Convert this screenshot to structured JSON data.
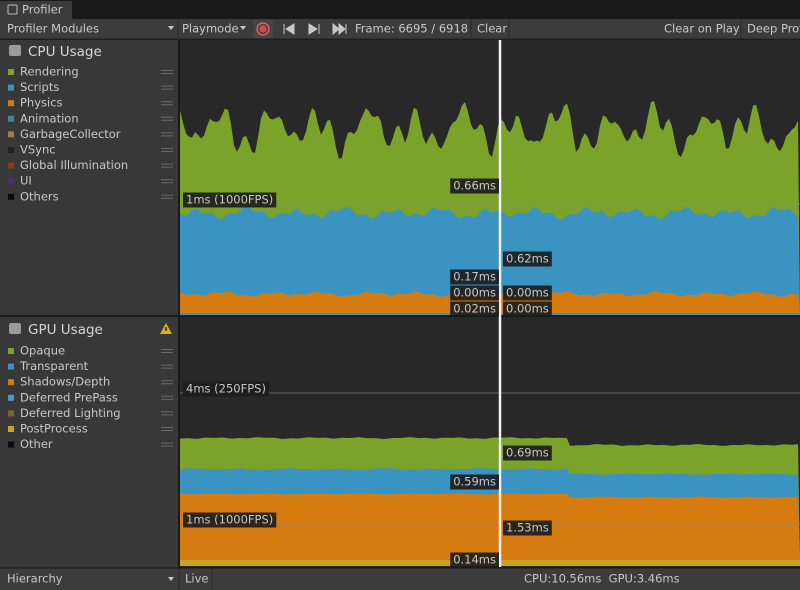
{
  "window": {
    "tab": "Profiler"
  },
  "toolbar": {
    "modules": "Profiler Modules",
    "mode": "Playmode",
    "frame": "Frame: 6695 / 6918",
    "clear": "Clear",
    "clear_on_play": "Clear on Play",
    "deep_profile": "Deep Profi"
  },
  "cpu": {
    "title": "CPU Usage",
    "legend": [
      {
        "name": "Rendering",
        "color": "#7ba329"
      },
      {
        "name": "Scripts",
        "color": "#3b93c2"
      },
      {
        "name": "Physics",
        "color": "#d67b10"
      },
      {
        "name": "Animation",
        "color": "#3a8a9b"
      },
      {
        "name": "GarbageCollector",
        "color": "#a37f3b"
      },
      {
        "name": "VSync",
        "color": "#202020"
      },
      {
        "name": "Global Illumination",
        "color": "#8a3a1e"
      },
      {
        "name": "UI",
        "color": "#4a2e6e"
      },
      {
        "name": "Others",
        "color": "#0c0c0c"
      }
    ],
    "guides": [
      "1ms (1000FPS)"
    ],
    "markers": [
      "0.66ms",
      "0.62ms",
      "0.17ms",
      "0.00ms",
      "0.00ms",
      "0.02ms",
      "0.00ms"
    ]
  },
  "gpu": {
    "title": "GPU Usage",
    "legend": [
      {
        "name": "Opaque",
        "color": "#7ba329"
      },
      {
        "name": "Transparent",
        "color": "#3b93c2"
      },
      {
        "name": "Shadows/Depth",
        "color": "#d67b10"
      },
      {
        "name": "Deferred PrePass",
        "color": "#4a9bb5"
      },
      {
        "name": "Deferred Lighting",
        "color": "#7a6a2a"
      },
      {
        "name": "PostProcess",
        "color": "#c9a227"
      },
      {
        "name": "Other",
        "color": "#0c0c0c"
      }
    ],
    "guides": [
      "4ms (250FPS)",
      "1ms (1000FPS)"
    ],
    "markers": [
      "0.69ms",
      "0.59ms",
      "1.53ms",
      "0.14ms"
    ]
  },
  "footer": {
    "view": "Hierarchy",
    "live": "Live",
    "stats": "CPU:10.56ms  GPU:3.46ms"
  }
}
